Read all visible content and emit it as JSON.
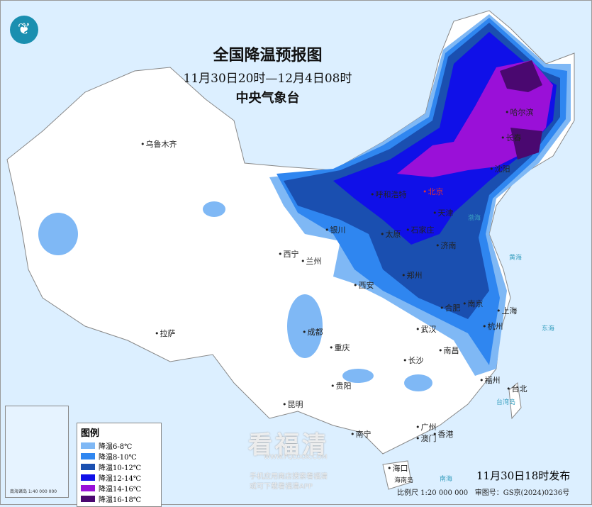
{
  "header": {
    "title": "全国降温预报图",
    "period": "11月30日20时—12月4日08时",
    "agency": "中央气象台",
    "logo": "cma-logo"
  },
  "legend": {
    "title": "图例",
    "items": [
      {
        "label": "降温6-8℃",
        "color": "#7fb8f5"
      },
      {
        "label": "降温8-10℃",
        "color": "#2f86f0"
      },
      {
        "label": "降温10-12℃",
        "color": "#1a4fb0"
      },
      {
        "label": "降温12-14℃",
        "color": "#1010e8"
      },
      {
        "label": "降温14-16℃",
        "color": "#9a10d8"
      },
      {
        "label": "降温16-18℃",
        "color": "#4a0870"
      }
    ]
  },
  "cities": [
    "乌鲁木齐",
    "哈尔滨",
    "长春",
    "沈阳",
    "呼和浩特",
    "北京",
    "天津",
    "银川",
    "太原",
    "石家庄",
    "西宁",
    "兰州",
    "济南",
    "西安",
    "郑州",
    "合肥",
    "南京",
    "上海",
    "杭州",
    "成都",
    "武汉",
    "重庆",
    "拉萨",
    "长沙",
    "南昌",
    "贵阳",
    "福州",
    "台北",
    "昆明",
    "南宁",
    "广州",
    "香港",
    "澳门",
    "海口"
  ],
  "seas": [
    "渤海",
    "黄海",
    "东海",
    "南海",
    "台湾岛",
    "海南岛"
  ],
  "inset": {
    "label": "南海诸岛 1:40 000 000"
  },
  "footer": {
    "issued": "11月30日18时发布",
    "scale": "比例尺 1:20 000 000",
    "map_no": "审图号：GS京(2024)0236号"
  },
  "watermark": {
    "brand": "看福清",
    "url": "WWW.FQLOOK.COM",
    "line1": "手机应用商店搜索看福清",
    "line2": "或可下载看福清APP"
  }
}
